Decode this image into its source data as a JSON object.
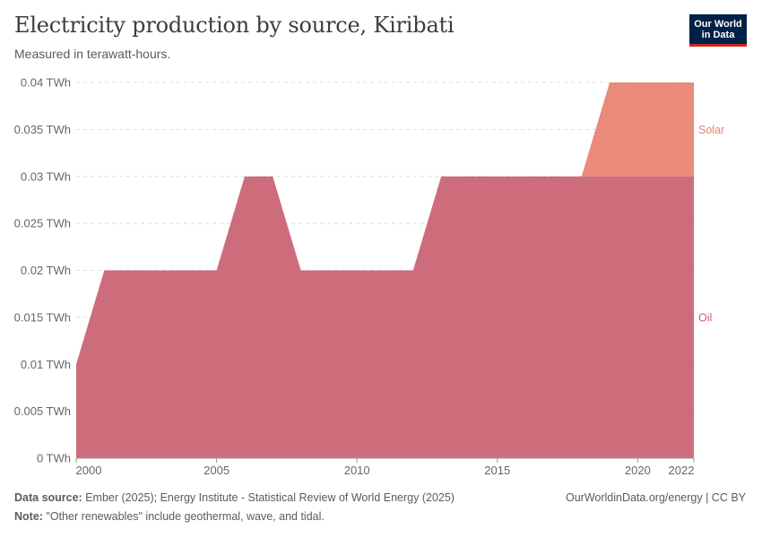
{
  "header": {
    "title": "Electricity production by source, Kiribati",
    "subtitle": "Measured in terawatt-hours."
  },
  "logo": {
    "line1": "Our World",
    "line2": "in Data"
  },
  "footer": {
    "source_label": "Data source:",
    "source_text": " Ember (2025); Energy Institute - Statistical Review of World Energy (2025)",
    "note_label": "Note:",
    "note_text": " \"Other renewables\" include geothermal, wave, and tidal.",
    "license": "OurWorldinData.org/energy | CC BY"
  },
  "chart_data": {
    "type": "area",
    "stacked": true,
    "title": "Electricity production by source, Kiribati",
    "ylabel": "TWh",
    "unit_suffix": " TWh",
    "ylim": [
      0,
      0.04
    ],
    "yticks": [
      0,
      0.005,
      0.01,
      0.015,
      0.02,
      0.025,
      0.03,
      0.035,
      0.04
    ],
    "ytick_labels": [
      "0 TWh",
      "0.005 TWh",
      "0.01 TWh",
      "0.015 TWh",
      "0.02 TWh",
      "0.025 TWh",
      "0.03 TWh",
      "0.035 TWh",
      "0.04 TWh"
    ],
    "xlim": [
      2000,
      2022
    ],
    "xticks": [
      2000,
      2005,
      2010,
      2015,
      2020,
      2022
    ],
    "x": [
      2000,
      2001,
      2002,
      2003,
      2004,
      2005,
      2006,
      2007,
      2008,
      2009,
      2010,
      2011,
      2012,
      2013,
      2014,
      2015,
      2016,
      2017,
      2018,
      2019,
      2020,
      2021,
      2022
    ],
    "series": [
      {
        "name": "Oil",
        "color": "#c96171",
        "values": [
          0.01,
          0.02,
          0.02,
          0.02,
          0.02,
          0.02,
          0.03,
          0.03,
          0.02,
          0.02,
          0.02,
          0.02,
          0.02,
          0.03,
          0.03,
          0.03,
          0.03,
          0.03,
          0.03,
          0.03,
          0.03,
          0.03,
          0.03
        ]
      },
      {
        "name": "Solar",
        "color": "#e8806f",
        "values": [
          0,
          0,
          0,
          0,
          0,
          0,
          0,
          0,
          0,
          0,
          0,
          0,
          0,
          0,
          0,
          0,
          0,
          0,
          0,
          0.01,
          0.01,
          0.01,
          0.01
        ]
      }
    ],
    "grid": true,
    "legend": "inline-right"
  }
}
